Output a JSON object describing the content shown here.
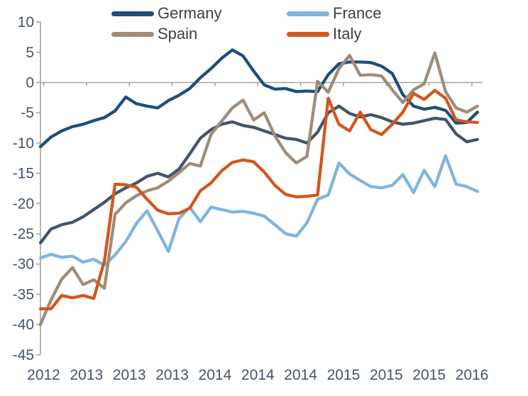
{
  "chart_data": {
    "type": "line",
    "title": "",
    "x_tick_labels": [
      "2012",
      "2013",
      "2013",
      "2013",
      "2014",
      "2014",
      "2014",
      "2015",
      "2015",
      "2015",
      "2016"
    ],
    "y_ticks": [
      10,
      5,
      0,
      -5,
      -10,
      -15,
      -20,
      -25,
      -30,
      -35,
      -40,
      -45
    ],
    "ylim": [
      -45,
      10
    ],
    "xlabel": "",
    "ylabel": "",
    "grid": "zero-line-only",
    "legend_position": "top",
    "n_points": 42,
    "frequency": "monthly",
    "series": [
      {
        "name": "unlabeled-dark-gray",
        "color": "#44546A",
        "in_legend": false,
        "values": [
          -26.5,
          -24.2,
          -23.5,
          -23.1,
          -22.2,
          -21.0,
          -19.8,
          -18.4,
          -17.4,
          -16.6,
          -15.5,
          -15.0,
          -15.6,
          -14.3,
          -11.8,
          -9.2,
          -7.8,
          -6.9,
          -6.5,
          -7.1,
          -7.4,
          -8.0,
          -8.6,
          -9.2,
          -9.4,
          -10.0,
          -8.2,
          -5.0,
          -3.9,
          -5.1,
          -5.7,
          -5.3,
          -5.8,
          -6.5,
          -6.9,
          -6.7,
          -6.3,
          -5.9,
          -6.1,
          -8.5,
          -9.8,
          -9.4
        ]
      },
      {
        "name": "Germany",
        "color": "#1F4E79",
        "in_legend": true,
        "values": [
          -10.6,
          -9.0,
          -8.0,
          -7.3,
          -6.9,
          -6.3,
          -5.8,
          -4.7,
          -2.4,
          -3.5,
          -3.9,
          -4.2,
          -3.0,
          -2.1,
          -1.0,
          0.8,
          2.3,
          4.0,
          5.4,
          4.4,
          1.9,
          -0.4,
          -1.1,
          -1.0,
          -1.5,
          -1.4,
          -1.5,
          1.3,
          3.1,
          3.4,
          3.4,
          3.3,
          2.7,
          1.5,
          -2.0,
          -3.9,
          -4.4,
          -4.1,
          -4.6,
          -6.7,
          -6.6,
          -4.9
        ]
      },
      {
        "name": "France",
        "color": "#7FB5DF",
        "in_legend": true,
        "values": [
          -29.0,
          -28.4,
          -28.9,
          -28.7,
          -29.7,
          -29.2,
          -30.2,
          -28.5,
          -26.3,
          -23.3,
          -21.2,
          -24.5,
          -27.9,
          -22.5,
          -20.6,
          -23.0,
          -20.6,
          -21.0,
          -21.4,
          -21.3,
          -21.6,
          -22.1,
          -23.5,
          -25.0,
          -25.4,
          -23.2,
          -19.3,
          -18.6,
          -13.3,
          -15.1,
          -16.2,
          -17.2,
          -17.4,
          -17.0,
          -15.2,
          -18.2,
          -14.5,
          -17.2,
          -12.1,
          -16.8,
          -17.2,
          -18.0
        ]
      },
      {
        "name": "Spain",
        "color": "#9E8C7B",
        "in_legend": true,
        "values": [
          -40.0,
          -35.9,
          -32.5,
          -30.6,
          -33.4,
          -32.6,
          -34.0,
          -21.8,
          -19.9,
          -18.7,
          -17.9,
          -17.4,
          -16.3,
          -14.9,
          -13.4,
          -13.8,
          -8.6,
          -6.4,
          -4.2,
          -2.9,
          -6.2,
          -5.0,
          -8.8,
          -11.6,
          -13.3,
          -12.2,
          0.2,
          -1.6,
          2.3,
          4.5,
          1.2,
          1.3,
          1.1,
          -1.2,
          -3.3,
          -1.2,
          -0.2,
          4.9,
          -1.5,
          -4.2,
          -4.9,
          -3.9
        ]
      },
      {
        "name": "Italy",
        "color": "#D2571E",
        "in_legend": true,
        "values": [
          -37.4,
          -37.4,
          -35.2,
          -35.6,
          -35.2,
          -35.7,
          -29.5,
          -16.8,
          -16.9,
          -17.3,
          -19.3,
          -21.1,
          -21.7,
          -21.6,
          -20.8,
          -17.9,
          -16.6,
          -14.6,
          -13.2,
          -12.8,
          -13.1,
          -14.8,
          -17.0,
          -18.5,
          -18.9,
          -18.8,
          -18.6,
          -2.6,
          -6.9,
          -8.0,
          -4.9,
          -7.8,
          -8.6,
          -6.9,
          -4.9,
          -1.8,
          -2.8,
          -1.3,
          -2.6,
          -6.2,
          -6.5,
          -6.6
        ]
      }
    ]
  },
  "legend": {
    "items": [
      {
        "label": "Germany",
        "color": "#1F4E79"
      },
      {
        "label": "France",
        "color": "#7FB5DF"
      },
      {
        "label": "Spain",
        "color": "#9E8C7B"
      },
      {
        "label": "Italy",
        "color": "#D2571E"
      }
    ]
  },
  "style": {
    "axis_line_color": "#A3A3A3",
    "tick_label_color": "#44546A",
    "legend_text_color": "#3f3f3f",
    "background": "#ffffff",
    "series_line_width": 4.3
  }
}
